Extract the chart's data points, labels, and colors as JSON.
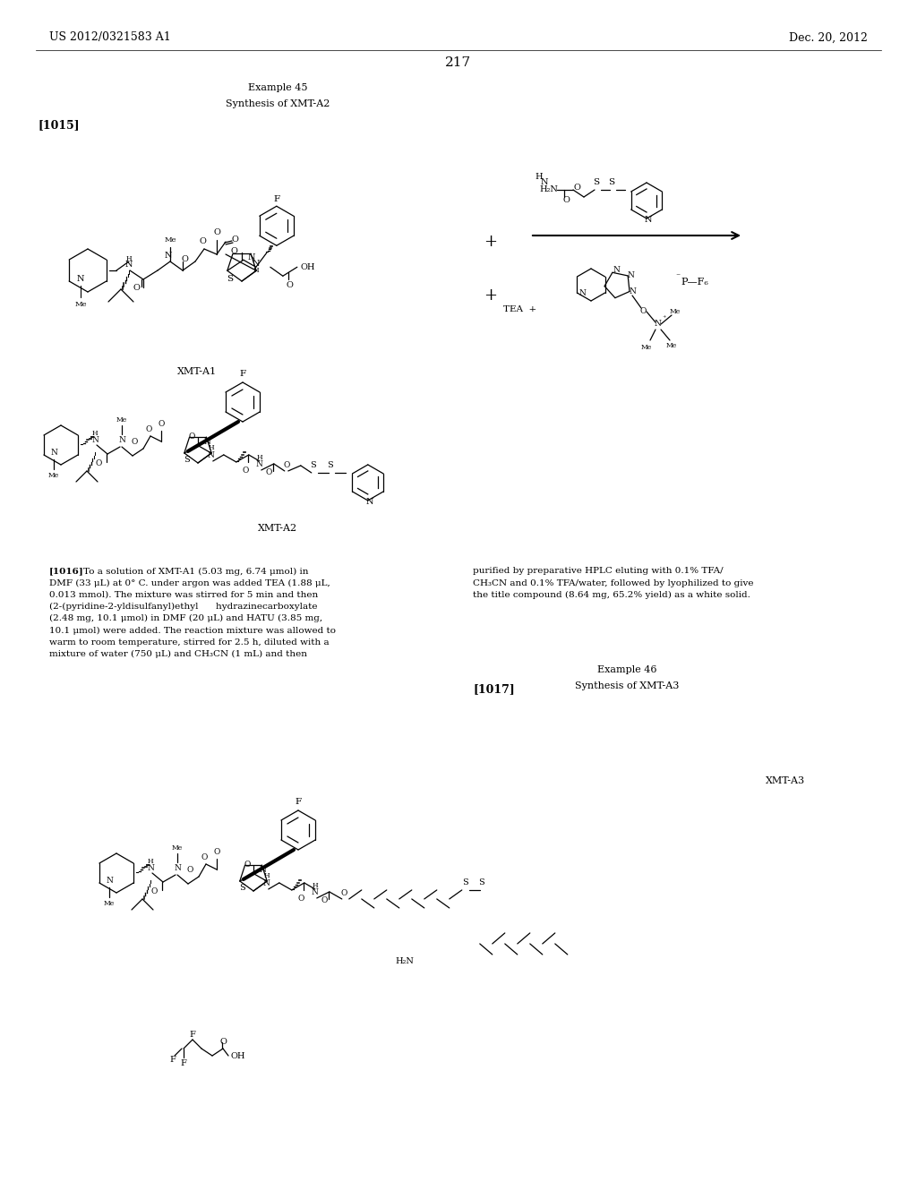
{
  "bg": "#ffffff",
  "patent_left": "US 2012/0321583 A1",
  "patent_right": "Dec. 20, 2012",
  "page_num": "217",
  "ex45_line1": "Example 45",
  "ex45_line2": "Synthesis of XMT-A2",
  "tag1015": "[1015]",
  "tag1016": "[1016]",
  "tag1017": "[1017]",
  "ex46_line1": "Example 46",
  "ex46_line2": "Synthesis of XMT-A3",
  "lbl_a1": "XMT-A1",
  "lbl_a2": "XMT-A2",
  "lbl_a3": "XMT-A3",
  "body_left_lines": [
    "[1016]   To a solution of XMT-A1 (5.03 mg, 6.74 μmol) in",
    "DMF (33 μL) at 0° C. under argon was added TEA (1.88 μL,",
    "0.013 mmol). The mixture was stirred for 5 min and then",
    "(2-(pyridine-2-yldisulfanyl)ethyl      hydrazinecarboxylate",
    "(2.48 mg, 10.1 μmol) in DMF (20 μL) and HATU (3.85 mg,",
    "10.1 μmol) were added. The reaction mixture was allowed to",
    "warm to room temperature, stirred for 2.5 h, diluted with a",
    "mixture of water (750 μL) and CH₃CN (1 mL) and then"
  ],
  "body_right_lines": [
    "purified by preparative HPLC eluting with 0.1% TFA/",
    "CH₃CN and 0.1% TFA/water, followed by lyophilized to give",
    "the title compound (8.64 mg, 65.2% yield) as a white solid."
  ]
}
